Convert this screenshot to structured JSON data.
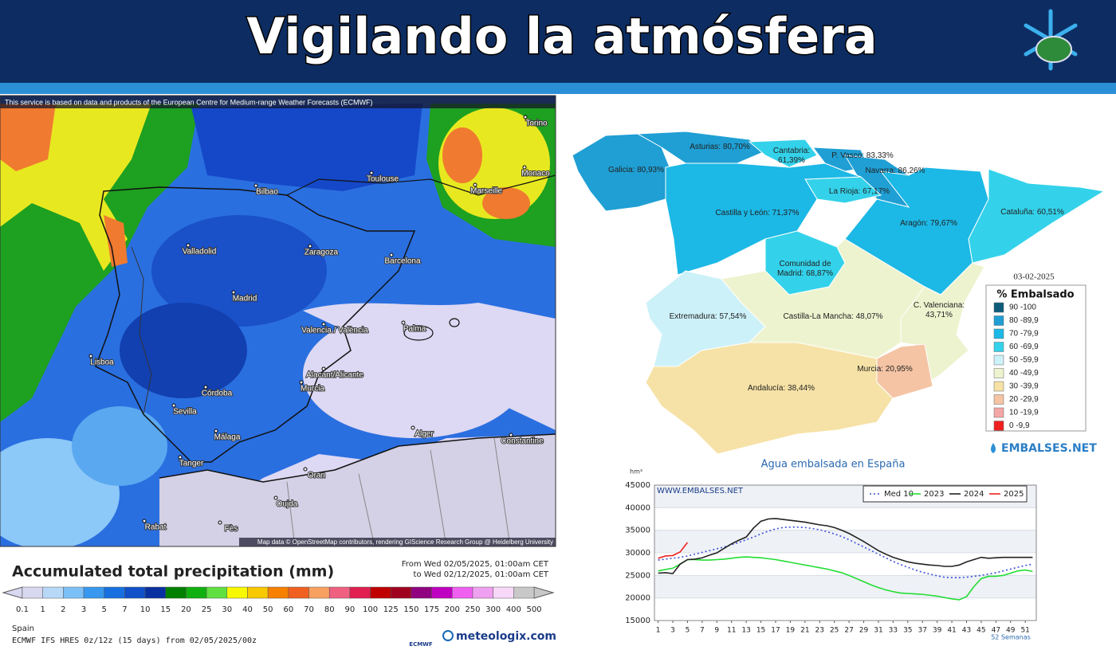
{
  "header": {
    "title": "Vigilando la atmósfera"
  },
  "precip_map": {
    "notice": "This service is based on data and products of the European Centre for Medium-range Weather Forecasts (ECMWF)",
    "cities": [
      "Torino",
      "Monaco",
      "Marseille",
      "Toulouse",
      "Bilbao",
      "Valladolid",
      "Zaragoza",
      "Barcelona",
      "Madrid",
      "Valencia / València",
      "Palma",
      "Lisboa",
      "Alacant/Alicante",
      "Murcia",
      "Córdoba",
      "Sevilla",
      "Málaga",
      "Tanger",
      "Alger",
      "Oran",
      "Constantine",
      "Oujda",
      "Rabat",
      "Fès"
    ],
    "attribution": "Map data © OpenStreetMap contributors, rendering GIScience Research Group @ Heidelberg University",
    "title": "Accumulated total precipitation (mm)",
    "from": "From Wed 02/05/2025, 01:00am CET",
    "to": "to Wed 02/12/2025, 01:00am CET",
    "scale_labels": [
      "0.1",
      "1",
      "2",
      "3",
      "5",
      "7",
      "10",
      "15",
      "20",
      "25",
      "30",
      "40",
      "50",
      "60",
      "70",
      "80",
      "90",
      "100",
      "125",
      "150",
      "175",
      "200",
      "250",
      "300",
      "400",
      "500"
    ],
    "scale_colors": [
      "#d8d8f0",
      "#b8d8f8",
      "#7cc0f8",
      "#3898f0",
      "#1870e0",
      "#1050c8",
      "#0830a0",
      "#008000",
      "#10b010",
      "#60e040",
      "#f8f800",
      "#f8c800",
      "#f88000",
      "#f06020",
      "#f8a060",
      "#f06080",
      "#e02050",
      "#c00000",
      "#a00020",
      "#900080",
      "#c000c0",
      "#f060f0",
      "#f0a0f0",
      "#f8d8f8",
      "#c8c8c8"
    ],
    "region": "Spain",
    "model": "ECMWF IFS HRES 0z/12z (15 days) from 02/05/2025/00z",
    "ecmwf": "ECMWF",
    "brand": "meteologix.com"
  },
  "reservoir_map": {
    "regions": [
      {
        "label": "Galicia: 80,93%",
        "color": "#1f9fd4"
      },
      {
        "label": "Asturias: 80,70%",
        "color": "#1f9fd4"
      },
      {
        "label": "Cantabria: 61,39%",
        "color": "#33d2ea"
      },
      {
        "label": "P. Vasco: 83,33%",
        "color": "#1f9fd4"
      },
      {
        "label": "Navarra: 86,26%",
        "color": "#1f9fd4"
      },
      {
        "label": "La Rioja: 67,17%",
        "color": "#33d2ea"
      },
      {
        "label": "Castilla y León: 71,37%",
        "color": "#1cb8e6"
      },
      {
        "label": "Aragón: 79,67%",
        "color": "#1cb8e6"
      },
      {
        "label": "Cataluña: 60,51%",
        "color": "#33d2ea"
      },
      {
        "label": "Comunidad de Madrid: 68,87%",
        "color": "#33d2ea"
      },
      {
        "label": "Extremadura: 57,54%",
        "color": "#cdf1f8"
      },
      {
        "label": "Castilla-La Mancha: 48,07%",
        "color": "#eef3cf"
      },
      {
        "label": "C. Valenciana: 43,71%",
        "color": "#eef3cf"
      },
      {
        "label": "Murcia: 20,95%",
        "color": "#f5c4a4"
      },
      {
        "label": "Andalucía: 38,44%",
        "color": "#f6e2a6"
      }
    ],
    "date": "03-02-2025",
    "legend_title": "% Embalsado",
    "legend": [
      {
        "label": "90 -100",
        "color": "#0d5d7a"
      },
      {
        "label": "80 -89,9",
        "color": "#1f9fd4"
      },
      {
        "label": "70 -79,9",
        "color": "#1cb8e6"
      },
      {
        "label": "60 -69,9",
        "color": "#33d2ea"
      },
      {
        "label": "50 -59,9",
        "color": "#cdf1f8"
      },
      {
        "label": "40 -49,9",
        "color": "#eef3cf"
      },
      {
        "label": "30 -39,9",
        "color": "#f6e2a6"
      },
      {
        "label": "20 -29,9",
        "color": "#f5c4a4"
      },
      {
        "label": "10 -19,9",
        "color": "#f4a6a6"
      },
      {
        "label": "0 -9,9",
        "color": "#ee2020"
      }
    ],
    "brand": "EMBALSES.NET"
  },
  "chart_data": {
    "type": "line",
    "title": "Agua embalsada en España",
    "y_label": "hm³",
    "watermark": "WWW.EMBALSES.NET",
    "x_label": "52 Semanas",
    "x": [
      1,
      2,
      3,
      4,
      5,
      6,
      7,
      8,
      9,
      10,
      11,
      12,
      13,
      14,
      15,
      16,
      17,
      18,
      19,
      20,
      21,
      22,
      23,
      24,
      25,
      26,
      27,
      28,
      29,
      30,
      31,
      32,
      33,
      34,
      35,
      36,
      37,
      38,
      39,
      40,
      41,
      42,
      43,
      44,
      45,
      46,
      47,
      48,
      49,
      50,
      51,
      52
    ],
    "xlim": [
      0.5,
      52.5
    ],
    "xticks": [
      1,
      3,
      5,
      7,
      9,
      11,
      13,
      15,
      17,
      19,
      21,
      23,
      25,
      27,
      29,
      31,
      33,
      35,
      37,
      39,
      41,
      43,
      45,
      47,
      49,
      51
    ],
    "ylim": [
      15000,
      45000
    ],
    "yticks": [
      15000,
      20000,
      25000,
      30000,
      35000,
      40000,
      45000
    ],
    "grid": true,
    "legend": "top-right",
    "series": [
      {
        "name": "Med 10",
        "color": "#3a4fd8",
        "dash": true,
        "values": [
          28400,
          28600,
          28800,
          29000,
          29300,
          29700,
          30100,
          30500,
          30900,
          31300,
          31800,
          32300,
          32900,
          33500,
          34200,
          34800,
          35300,
          35600,
          35700,
          35700,
          35600,
          35400,
          35100,
          34700,
          34200,
          33600,
          32900,
          32100,
          31300,
          30500,
          29700,
          28900,
          28100,
          27400,
          26800,
          26200,
          25700,
          25300,
          24900,
          24600,
          24500,
          24500,
          24600,
          24800,
          25000,
          25300,
          25600,
          26000,
          26400,
          26800,
          27200,
          27500
        ]
      },
      {
        "name": "2023",
        "color": "#22dd33",
        "values": [
          26000,
          26300,
          26600,
          27500,
          28500,
          28500,
          28400,
          28400,
          28500,
          28600,
          28800,
          29000,
          29100,
          29000,
          28900,
          28700,
          28500,
          28200,
          27900,
          27600,
          27300,
          27000,
          26700,
          26400,
          26000,
          25600,
          25000,
          24300,
          23600,
          22900,
          22300,
          21800,
          21400,
          21100,
          21000,
          20900,
          20800,
          20600,
          20400,
          20100,
          19800,
          19600,
          20300,
          22500,
          24300,
          24800,
          24800,
          25000,
          25500,
          26000,
          26200,
          25900
        ]
      },
      {
        "name": "2024",
        "color": "#222222",
        "values": [
          25500,
          25600,
          25400,
          27500,
          28500,
          28600,
          28900,
          29500,
          30000,
          31000,
          32000,
          32800,
          33500,
          35500,
          37000,
          37500,
          37600,
          37400,
          37200,
          37000,
          36800,
          36500,
          36200,
          36000,
          35600,
          35000,
          34300,
          33400,
          32500,
          31500,
          30500,
          29700,
          29000,
          28500,
          28000,
          27700,
          27500,
          27300,
          27200,
          27000,
          27000,
          27300,
          28000,
          28500,
          29000,
          28800,
          28900,
          29000,
          29000,
          29000,
          29000,
          29000
        ]
      },
      {
        "name": "2025",
        "color": "#ee2222",
        "values": [
          28800,
          29300,
          29400,
          30200,
          32300,
          null,
          null,
          null,
          null,
          null,
          null,
          null,
          null,
          null,
          null,
          null,
          null,
          null,
          null,
          null,
          null,
          null,
          null,
          null,
          null,
          null,
          null,
          null,
          null,
          null,
          null,
          null,
          null,
          null,
          null,
          null,
          null,
          null,
          null,
          null,
          null,
          null,
          null,
          null,
          null,
          null,
          null,
          null,
          null,
          null,
          null,
          null
        ]
      }
    ]
  }
}
